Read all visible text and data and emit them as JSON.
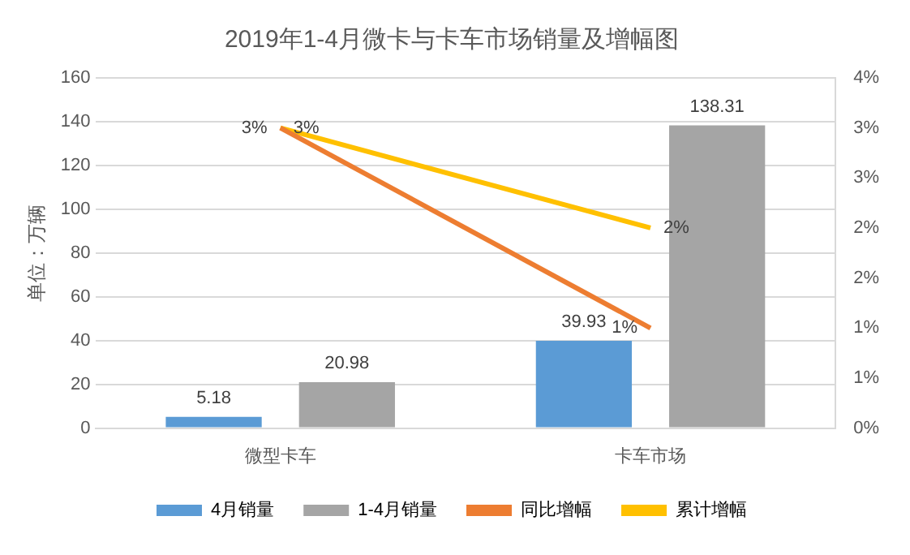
{
  "chart_data": {
    "type": "bar",
    "title": "2019年1-4月微卡与卡车市场销量及增幅图",
    "ylabel": "单位：万辆",
    "categories": [
      "微型卡车",
      "卡车市场"
    ],
    "series": [
      {
        "name": "4月销量",
        "color": "#5b9bd5",
        "values": [
          5.18,
          39.93
        ],
        "value_labels": [
          "5.18",
          "39.93"
        ]
      },
      {
        "name": "1-4月销量",
        "color": "#a5a5a5",
        "values": [
          20.98,
          138.31
        ],
        "value_labels": [
          "20.98",
          "138.31"
        ]
      },
      {
        "name": "同比增幅",
        "type": "line",
        "axis": "y2",
        "color": "#ed7d31",
        "values": [
          3.0,
          1.0
        ],
        "value_labels": [
          "3%",
          "1%"
        ]
      },
      {
        "name": "累计增幅",
        "type": "line",
        "axis": "y2",
        "color": "#ffc000",
        "values": [
          3.0,
          2.0
        ],
        "value_labels": [
          "3%",
          "2%"
        ]
      }
    ],
    "ylim": [
      0,
      160
    ],
    "yticks": [
      0,
      20,
      40,
      60,
      80,
      100,
      120,
      140,
      160
    ],
    "y2lim": [
      0,
      3.5
    ],
    "y2ticks": [
      {
        "value": 0,
        "label": "0%"
      },
      {
        "value": 0.5,
        "label": "1%"
      },
      {
        "value": 1,
        "label": "1%"
      },
      {
        "value": 1.5,
        "label": "2%"
      },
      {
        "value": 2,
        "label": "2%"
      },
      {
        "value": 2.5,
        "label": "3%"
      },
      {
        "value": 3,
        "label": "3%"
      },
      {
        "value": 3.5,
        "label": "4%"
      }
    ],
    "grid": "y",
    "legend": "bottom",
    "marker": "none"
  }
}
